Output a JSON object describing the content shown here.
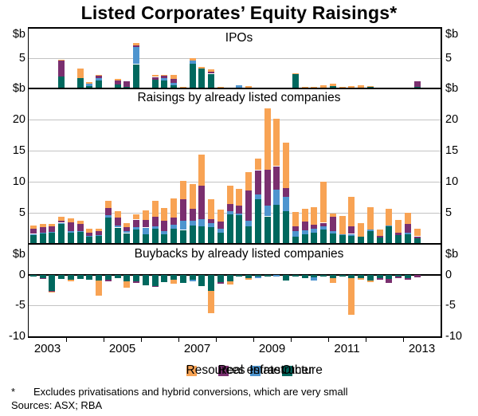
{
  "title": "Listed Corporates’ Equity Raisings*",
  "unit_label": "$b",
  "footnote_marker": "*",
  "footnote": "Excludes privatisations and hybrid conversions, which are very small",
  "sources": "Sources: ASX; RBA",
  "colors": {
    "resources": "#F8A354",
    "real_estate": "#7A2F6F",
    "infrastructure": "#4E95CF",
    "other": "#00685E",
    "gridline": "#c3c3c3"
  },
  "legend": [
    {
      "key": "resources",
      "label": "Resources"
    },
    {
      "key": "real_estate",
      "label": "Real estate"
    },
    {
      "key": "infrastructure",
      "label": "Infrastructure"
    },
    {
      "key": "other",
      "label": "Other"
    }
  ],
  "x_axis": {
    "start_year": 2003,
    "tick_years_end_of": [
      2003,
      2004,
      2005,
      2006,
      2007,
      2008,
      2009,
      2010,
      2011,
      2012
    ],
    "labels": [
      "2003",
      "2005",
      "2007",
      "2009",
      "2011",
      "2013"
    ]
  },
  "chart_data": {
    "type": "bar",
    "stacked": true,
    "frequency": "quarterly",
    "stack_order": [
      "other",
      "infrastructure",
      "real_estate",
      "resources"
    ],
    "quarters": [
      "2003Q1",
      "2003Q2",
      "2003Q3",
      "2003Q4",
      "2004Q1",
      "2004Q2",
      "2004Q3",
      "2004Q4",
      "2005Q1",
      "2005Q2",
      "2005Q3",
      "2005Q4",
      "2006Q1",
      "2006Q2",
      "2006Q3",
      "2006Q4",
      "2007Q1",
      "2007Q2",
      "2007Q3",
      "2007Q4",
      "2008Q1",
      "2008Q2",
      "2008Q3",
      "2008Q4",
      "2009Q1",
      "2009Q2",
      "2009Q3",
      "2009Q4",
      "2010Q1",
      "2010Q2",
      "2010Q3",
      "2010Q4",
      "2011Q1",
      "2011Q2",
      "2011Q3",
      "2011Q4",
      "2012Q1",
      "2012Q2",
      "2012Q3",
      "2012Q4",
      "2013Q1",
      "2013Q2"
    ],
    "panels": [
      {
        "id": "ipos",
        "title": "IPOs",
        "ylabel": "$b",
        "ylim": [
          0,
          10
        ],
        "yticks": [
          5
        ],
        "series": {
          "other": [
            0,
            0,
            0,
            2.0,
            0,
            1.7,
            0.4,
            1.3,
            0,
            0.6,
            0.3,
            4.0,
            0,
            1.45,
            1.3,
            0.55,
            0.15,
            4.1,
            3.4,
            2.4,
            0,
            0,
            0,
            0,
            0,
            0,
            0,
            0,
            2.4,
            0,
            0,
            0,
            0.35,
            0,
            0.1,
            0.15,
            0.3,
            0,
            0,
            0,
            0,
            0.3
          ],
          "infrastructure": [
            0,
            0,
            0,
            0,
            0,
            0,
            0.5,
            0.4,
            0,
            0,
            0,
            2.8,
            0,
            0,
            0.45,
            0.35,
            0,
            0.5,
            0,
            0,
            0,
            0,
            0.5,
            0,
            0,
            0,
            0,
            0,
            0,
            0,
            0,
            0,
            0,
            0,
            0,
            0,
            0,
            0,
            0,
            0,
            0,
            0
          ],
          "real_estate": [
            0,
            0,
            0,
            2.7,
            0,
            0,
            0,
            0.5,
            0,
            0.8,
            0.9,
            0.3,
            0,
            0.45,
            0.35,
            0.8,
            0,
            0,
            0,
            0.45,
            0,
            0,
            0,
            0,
            0,
            0,
            0,
            0,
            0,
            0,
            0,
            0,
            0,
            0,
            0,
            0,
            0,
            0,
            0,
            0,
            0,
            0.9
          ],
          "resources": [
            0.1,
            0.1,
            0.1,
            0.1,
            0.1,
            1.6,
            0.2,
            0.1,
            0.2,
            0.2,
            0,
            0.4,
            0.15,
            0.3,
            0.1,
            0.6,
            0.15,
            0.4,
            0.2,
            0.35,
            0.3,
            0.1,
            0,
            0.35,
            0.05,
            0.05,
            0.05,
            0.2,
            0.15,
            0.3,
            0.3,
            0.5,
            0.45,
            0.3,
            0.3,
            0.35,
            0.05,
            0.1,
            0.15,
            0.2,
            0.05,
            0
          ]
        }
      },
      {
        "id": "raisings",
        "title": "Raisings by already listed companies",
        "ylabel": "$b",
        "ylim": [
          0,
          25
        ],
        "yticks": [
          20,
          15,
          10,
          5
        ],
        "series": {
          "other": [
            1.5,
            1.7,
            1.8,
            3.3,
            1.9,
            2.0,
            1.2,
            1.3,
            4.2,
            2.6,
            1.7,
            2.3,
            1.6,
            2.4,
            1.5,
            2.4,
            2.2,
            2.9,
            2.8,
            2.7,
            1.8,
            4.8,
            4.6,
            2.8,
            7.2,
            4.4,
            6.3,
            5.3,
            1.2,
            1.5,
            1.75,
            2.3,
            1.7,
            1.5,
            1.4,
            1.2,
            2.0,
            1.0,
            2.9,
            1.4,
            1.5,
            0.9
          ],
          "infrastructure": [
            0.1,
            0.1,
            0.1,
            0.1,
            0.2,
            0.1,
            0.1,
            0.1,
            0.4,
            0.3,
            0.3,
            0.5,
            1.0,
            0.5,
            0.5,
            0.7,
            1.6,
            0.8,
            1.2,
            0.7,
            0.6,
            0.45,
            0.3,
            0.9,
            0.85,
            1.7,
            2.5,
            2.3,
            0.85,
            0.7,
            0.7,
            0.6,
            0.4,
            0.1,
            0.2,
            0,
            0.3,
            0,
            0.1,
            0,
            0.3,
            0
          ],
          "real_estate": [
            0.8,
            0.9,
            0.9,
            0.4,
            1.4,
            1.1,
            0.6,
            0.6,
            1.2,
            1.3,
            0.7,
            1.1,
            1.2,
            1.5,
            1.8,
            1.1,
            3.4,
            1.9,
            5.4,
            0.6,
            1.2,
            1.2,
            1.3,
            4.9,
            3.8,
            5.8,
            3.7,
            1.4,
            0.75,
            1.5,
            0.65,
            0.5,
            2.3,
            0,
            1.2,
            0,
            0,
            0.3,
            0,
            0.4,
            1.4,
            0.3
          ],
          "resources": [
            0.5,
            0.5,
            0.4,
            0.6,
            0.6,
            0.5,
            0.6,
            0.4,
            1.1,
            1.0,
            0.7,
            0.8,
            1.6,
            2.5,
            2.0,
            3.1,
            2.9,
            4.0,
            5.0,
            3.2,
            1.9,
            2.9,
            2.7,
            2.9,
            1.85,
            9.9,
            7.6,
            7.3,
            2.3,
            2.0,
            2.8,
            6.6,
            0.5,
            2.9,
            4.8,
            2.2,
            3.6,
            1.0,
            2.7,
            2.0,
            1.8,
            1.2
          ]
        }
      },
      {
        "id": "buybacks",
        "title": "Buybacks by already listed companies",
        "ylabel": "$b",
        "ylim": [
          -10,
          5
        ],
        "yticks": [
          0,
          -5,
          -10
        ],
        "series": {
          "other": [
            -0.3,
            -0.5,
            -2.6,
            -0.7,
            -0.8,
            -0.6,
            -0.8,
            -1.0,
            -0.8,
            -0.5,
            -1.1,
            -1.1,
            -1.7,
            -1.8,
            -1.2,
            -0.8,
            -1.3,
            -0.8,
            -1.8,
            -2.6,
            -1.2,
            -1.1,
            -0.2,
            -0.6,
            -0.3,
            -0.2,
            0,
            -0.9,
            -0.2,
            -0.5,
            -0.4,
            -0.25,
            -0.5,
            -0.3,
            -0.6,
            -0.55,
            -0.95,
            -0.5,
            -0.7,
            -0.35,
            -0.55,
            0
          ],
          "infrastructure": [
            0,
            0,
            0,
            0,
            0,
            0,
            0,
            0,
            0,
            0,
            0,
            0,
            0,
            0,
            0,
            0,
            0,
            -0.2,
            0,
            0,
            0,
            0,
            0,
            0,
            -0.3,
            0,
            -0.3,
            0,
            0,
            0,
            -0.5,
            0,
            0,
            0,
            0,
            0,
            0,
            0,
            0,
            0,
            0,
            0
          ],
          "real_estate": [
            0,
            -0.1,
            -0.1,
            0,
            0,
            0,
            0,
            0,
            -0.2,
            0,
            0,
            -0.2,
            0,
            -0.1,
            0,
            0,
            0,
            0,
            0,
            0,
            -0.2,
            0,
            0,
            0,
            0,
            0,
            0,
            0,
            0,
            0,
            0,
            0,
            0,
            0,
            0,
            0,
            0,
            -0.2,
            -0.6,
            -0.25,
            -0.2,
            -0.35
          ],
          "resources": [
            0,
            0,
            -0.1,
            0,
            -0.2,
            0,
            0,
            -2.5,
            0,
            0,
            -1.0,
            0,
            0,
            0,
            0,
            -0.7,
            0,
            0,
            0,
            -3.6,
            0,
            -0.5,
            0,
            -0.2,
            0,
            0,
            0,
            0,
            0,
            0,
            0,
            0,
            -0.75,
            0,
            -6.0,
            -0.2,
            -0.25,
            0,
            0,
            0,
            0,
            0
          ]
        }
      }
    ]
  }
}
